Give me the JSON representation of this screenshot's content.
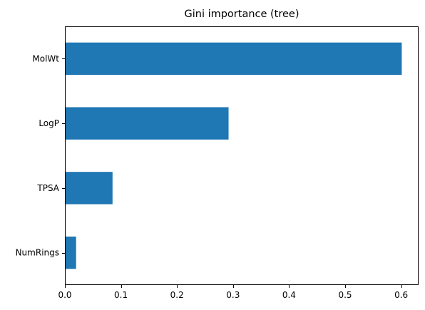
{
  "chart_data": {
    "type": "bar",
    "orientation": "horizontal",
    "title": "Gini importance (tree)",
    "xlabel": "",
    "ylabel": "",
    "categories": [
      "MolWt",
      "LogP",
      "TPSA",
      "NumRings"
    ],
    "values": [
      0.601,
      0.292,
      0.085,
      0.02
    ],
    "xlim": [
      0,
      0.631
    ],
    "xticks": [
      0,
      0.1,
      0.2,
      0.3,
      0.4,
      0.5,
      0.6
    ],
    "xtick_labels": [
      "0.0",
      "0.1",
      "0.2",
      "0.3",
      "0.4",
      "0.5",
      "0.6"
    ],
    "grid": false,
    "legend": "none",
    "bar_color": "#1f77b4"
  }
}
